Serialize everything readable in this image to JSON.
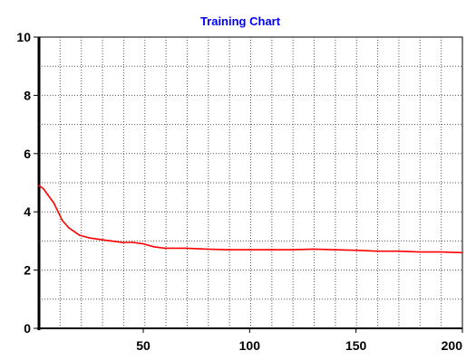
{
  "chart_data": {
    "type": "line",
    "title": "Training Chart",
    "xlabel": "",
    "ylabel": "",
    "xlim": [
      1,
      200
    ],
    "ylim": [
      0,
      10
    ],
    "x_ticks": [
      50,
      100,
      150,
      200
    ],
    "y_ticks": [
      0,
      2,
      4,
      6,
      8,
      10
    ],
    "grid": true,
    "series": [
      {
        "color": "#ff0000",
        "x": [
          1,
          3,
          5,
          8,
          10,
          12,
          15,
          18,
          20,
          25,
          30,
          35,
          40,
          45,
          50,
          55,
          60,
          70,
          80,
          90,
          100,
          110,
          120,
          130,
          140,
          150,
          160,
          170,
          180,
          190,
          200
        ],
        "y": [
          4.9,
          4.8,
          4.6,
          4.3,
          4.0,
          3.7,
          3.45,
          3.3,
          3.2,
          3.1,
          3.05,
          3.0,
          2.95,
          2.95,
          2.9,
          2.8,
          2.75,
          2.75,
          2.72,
          2.7,
          2.7,
          2.7,
          2.7,
          2.72,
          2.7,
          2.68,
          2.65,
          2.65,
          2.62,
          2.62,
          2.6
        ]
      }
    ]
  },
  "colors": {
    "background": "#ffffff",
    "plot_background": "#ffffff",
    "grid": "#555555",
    "axis": "#000000",
    "title": "#0000ff",
    "line": "#ff0000"
  }
}
